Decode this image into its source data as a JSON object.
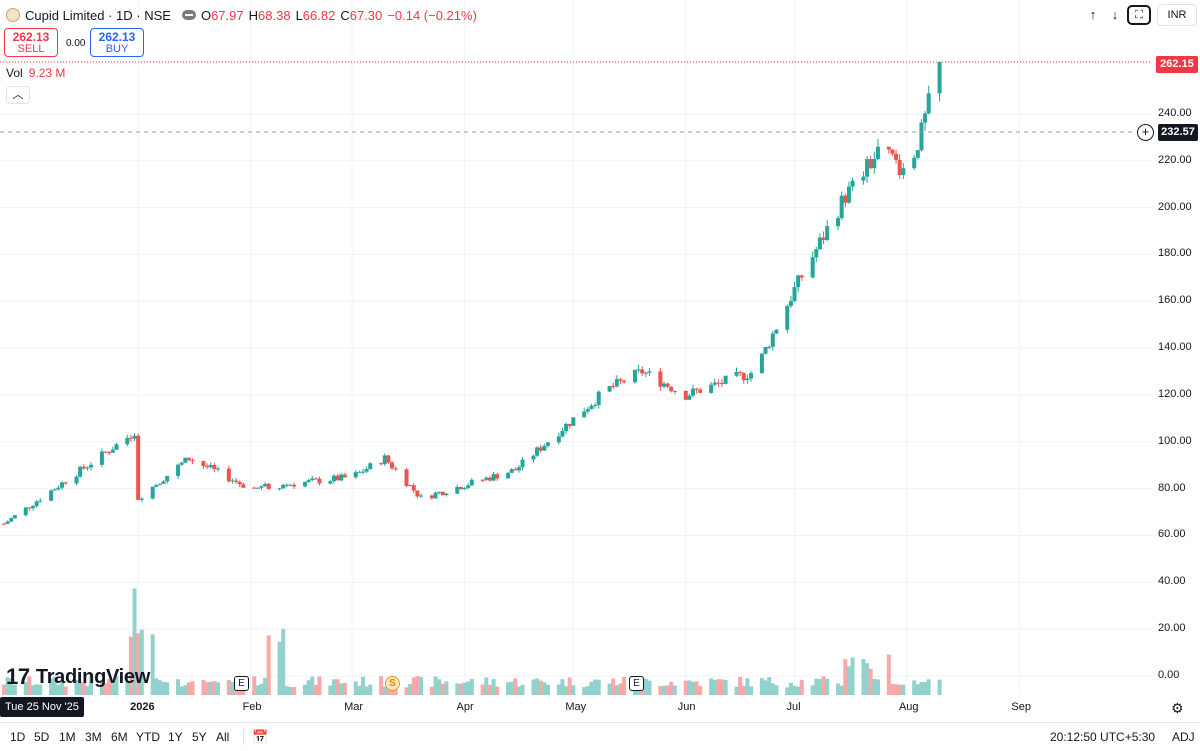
{
  "header": {
    "symbol": "Cupid Limited · 1D · NSE",
    "open_key": "O",
    "open": "67.97",
    "high_key": "H",
    "high": "68.38",
    "low_key": "L",
    "low": "66.82",
    "close_key": "C",
    "close": "67.30",
    "change": "−0.14 (−0.21%)",
    "currency": "INR"
  },
  "trade": {
    "sell_price": "262.13",
    "sell_label": "SELL",
    "spread": "0.00",
    "buy_price": "262.13",
    "buy_label": "BUY"
  },
  "volume_legend": {
    "label": "Vol",
    "value": "9.23 M"
  },
  "price_scale": {
    "last_price": "262.15",
    "crosshair_price": "232.57",
    "ticks": [
      "240.00",
      "220.00",
      "200.00",
      "180.00",
      "160.00",
      "140.00",
      "120.00",
      "100.00",
      "80.00",
      "60.00",
      "40.00",
      "20.00",
      "0.00"
    ]
  },
  "time_axis": {
    "cursor_date": "Tue 25 Nov '25",
    "labels": [
      "2026",
      "Feb",
      "Mar",
      "Apr",
      "May",
      "Jun",
      "Jul",
      "Aug",
      "Sep"
    ]
  },
  "events": {
    "earnings": "E",
    "dividend": "S"
  },
  "branding": {
    "logo_mark": "17",
    "logo_text": "TradingView"
  },
  "bottom_toolbar": {
    "ranges": [
      "1D",
      "5D",
      "1M",
      "3M",
      "6M",
      "YTD",
      "1Y",
      "5Y",
      "All"
    ],
    "clock": "20:12:50 UTC+5:30",
    "adj": "ADJ"
  },
  "colors": {
    "up": "#26a69a",
    "down": "#ef5350",
    "up_volume": "#92d2cc",
    "down_volume": "#f7a9a7",
    "last_price": "#f23645"
  },
  "chart_data": {
    "type": "candlestick",
    "title": "Cupid Limited · 1D · NSE",
    "y_range": [
      0,
      270
    ],
    "x_range": [
      "2025-11-25",
      "2026-09-10"
    ],
    "key_points": [
      {
        "date": "2025-11-25",
        "close": 65
      },
      {
        "date": "2025-12-31",
        "close": 104
      },
      {
        "date": "2026-01-01",
        "close": 76
      },
      {
        "date": "2026-01-15",
        "close": 93
      },
      {
        "date": "2026-02-01",
        "close": 80
      },
      {
        "date": "2026-03-01",
        "close": 85
      },
      {
        "date": "2026-03-10",
        "close": 93
      },
      {
        "date": "2026-03-20",
        "close": 76
      },
      {
        "date": "2026-04-15",
        "close": 88
      },
      {
        "date": "2026-05-10",
        "close": 122
      },
      {
        "date": "2026-05-20",
        "close": 130
      },
      {
        "date": "2026-06-01",
        "close": 120
      },
      {
        "date": "2026-06-20",
        "close": 130
      },
      {
        "date": "2026-07-01",
        "close": 165
      },
      {
        "date": "2026-07-15",
        "close": 205
      },
      {
        "date": "2026-07-25",
        "close": 225
      },
      {
        "date": "2026-08-01",
        "close": 215
      },
      {
        "date": "2026-08-05",
        "close": 232
      },
      {
        "date": "2026-08-10",
        "close": 262.15
      }
    ],
    "volume_unit": "M",
    "last_volume": 9.23
  }
}
